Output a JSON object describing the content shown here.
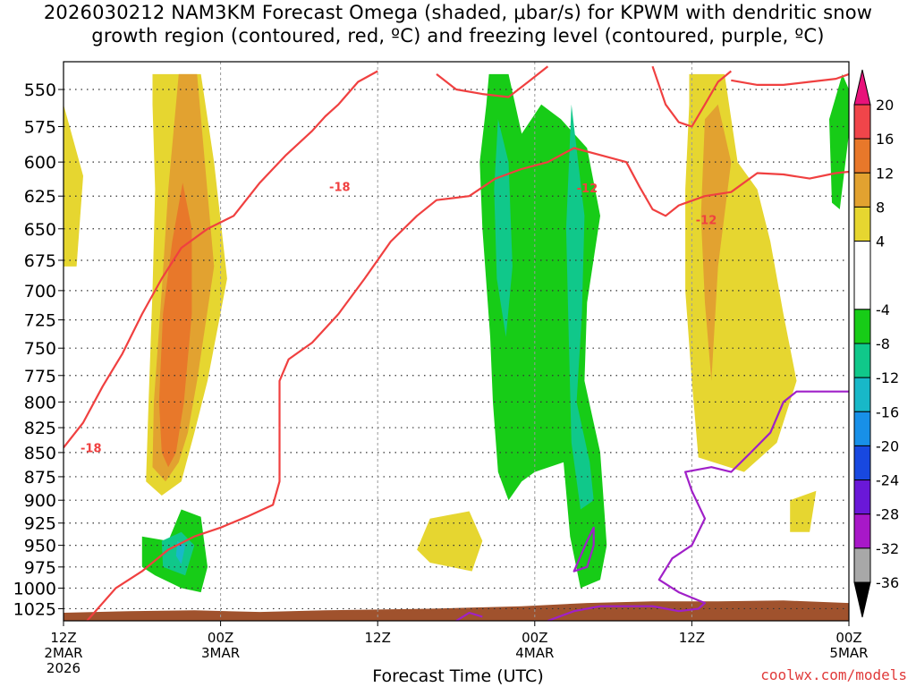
{
  "title": {
    "line1": "2026030212 NAM3KM Forecast Omega (shaded, μbar/s) for KPWM with dendritic snow",
    "line2": "growth region (contoured, red, ºC) and freezing level (contoured, purple, ºC)"
  },
  "credit": "coolwx.com/models",
  "chart_data": {
    "type": "heatmap",
    "title": "2026030212 NAM3KM Forecast Omega (shaded, μbar/s) for KPWM with dendritic snow growth region (contoured, red, ºC) and freezing level (contoured, purple, ºC)",
    "xlabel": "Forecast Time (UTC)",
    "ylabel": "",
    "x_ticks": [
      {
        "hour": 0,
        "lines": [
          "12Z",
          "2MAR",
          "2026"
        ]
      },
      {
        "hour": 12,
        "lines": [
          "00Z",
          "3MAR"
        ]
      },
      {
        "hour": 24,
        "lines": [
          "12Z"
        ]
      },
      {
        "hour": 36,
        "lines": [
          "00Z",
          "4MAR"
        ]
      },
      {
        "hour": 48,
        "lines": [
          "12Z"
        ]
      },
      {
        "hour": 60,
        "lines": [
          "00Z",
          "5MAR"
        ]
      }
    ],
    "xlim": [
      0,
      60
    ],
    "y_ticks": [
      550,
      575,
      600,
      625,
      650,
      675,
      700,
      725,
      750,
      775,
      800,
      825,
      850,
      875,
      900,
      925,
      950,
      975,
      1000,
      1025
    ],
    "ylim": [
      1040,
      532
    ],
    "y_scale": "log-pressure",
    "grid": true,
    "colorbar": {
      "ticks": [
        20,
        16,
        12,
        8,
        4,
        -4,
        -8,
        -12,
        -16,
        -20,
        -24,
        -28,
        -32,
        -36
      ],
      "bins": [
        {
          "from": 20,
          "to": 24,
          "color": "#e8127a"
        },
        {
          "from": 16,
          "to": 20,
          "color": "#f0454a"
        },
        {
          "from": 12,
          "to": 16,
          "color": "#e8782a"
        },
        {
          "from": 8,
          "to": 12,
          "color": "#e2a230"
        },
        {
          "from": 4,
          "to": 8,
          "color": "#e6d630"
        },
        {
          "from": -4,
          "to": 4,
          "color": "#ffffff"
        },
        {
          "from": -8,
          "to": -4,
          "color": "#17cc17"
        },
        {
          "from": -12,
          "to": -8,
          "color": "#10c88a"
        },
        {
          "from": -16,
          "to": -12,
          "color": "#18b8c8"
        },
        {
          "from": -20,
          "to": -16,
          "color": "#1890e8"
        },
        {
          "from": -24,
          "to": -20,
          "color": "#1848e0"
        },
        {
          "from": -28,
          "to": -24,
          "color": "#6a18d8"
        },
        {
          "from": -32,
          "to": -28,
          "color": "#a818c8"
        },
        {
          "from": -36,
          "to": -32,
          "color": "#a8a8a8"
        },
        {
          "from": -40,
          "to": -36,
          "color": "#000000"
        }
      ]
    },
    "omega_regions": [
      {
        "value": 6,
        "color": "#e6d630",
        "points": [
          [
            0,
            560
          ],
          [
            1.5,
            610
          ],
          [
            1,
            680
          ],
          [
            0,
            680
          ]
        ]
      },
      {
        "value": 6,
        "color": "#e6d630",
        "points": [
          [
            6.8,
            540
          ],
          [
            10.5,
            540
          ],
          [
            11.5,
            600
          ],
          [
            12.5,
            690
          ],
          [
            11,
            780
          ],
          [
            10,
            830
          ],
          [
            9,
            880
          ],
          [
            7.5,
            895
          ],
          [
            6.3,
            880
          ],
          [
            6.5,
            800
          ],
          [
            6.8,
            700
          ],
          [
            7,
            620
          ],
          [
            6.8,
            560
          ]
        ]
      },
      {
        "value": 10,
        "color": "#e2a230",
        "points": [
          [
            8.8,
            540
          ],
          [
            10.2,
            540
          ],
          [
            10.8,
            600
          ],
          [
            11.5,
            680
          ],
          [
            10.2,
            780
          ],
          [
            9.5,
            830
          ],
          [
            8.8,
            860
          ],
          [
            7.8,
            880
          ],
          [
            6.8,
            865
          ],
          [
            6.9,
            800
          ],
          [
            7.5,
            700
          ],
          [
            8,
            620
          ]
        ]
      },
      {
        "value": 14,
        "color": "#e8782a",
        "points": [
          [
            9.1,
            615
          ],
          [
            9.8,
            650
          ],
          [
            9.8,
            720
          ],
          [
            9.2,
            800
          ],
          [
            8.6,
            850
          ],
          [
            8,
            865
          ],
          [
            7.5,
            850
          ],
          [
            7.3,
            800
          ],
          [
            7.6,
            720
          ],
          [
            8.3,
            660
          ]
        ]
      },
      {
        "value": 6,
        "color": "#e6d630",
        "points": [
          [
            47.8,
            540
          ],
          [
            50.5,
            540
          ],
          [
            51.5,
            600
          ],
          [
            53,
            620
          ],
          [
            54,
            660
          ],
          [
            55,
            720
          ],
          [
            56,
            780
          ],
          [
            54.5,
            840
          ],
          [
            52,
            870
          ],
          [
            48.5,
            855
          ],
          [
            48,
            780
          ],
          [
            47.5,
            700
          ],
          [
            47.5,
            620
          ],
          [
            47.8,
            560
          ]
        ]
      },
      {
        "value": 10,
        "color": "#e2a230",
        "points": [
          [
            49,
            570
          ],
          [
            50,
            560
          ],
          [
            51,
            600
          ],
          [
            50,
            680
          ],
          [
            49.5,
            780
          ],
          [
            49,
            710
          ],
          [
            48.7,
            640
          ]
        ]
      },
      {
        "value": 6,
        "color": "#e6d630",
        "points": [
          [
            28,
            920
          ],
          [
            31,
            912
          ],
          [
            32,
            945
          ],
          [
            31.2,
            980
          ],
          [
            28,
            970
          ],
          [
            27,
            955
          ]
        ]
      },
      {
        "value": 6,
        "color": "#e6d630",
        "points": [
          [
            55.5,
            900
          ],
          [
            57.5,
            890
          ],
          [
            57,
            935
          ],
          [
            55.5,
            935
          ]
        ]
      },
      {
        "value": -6,
        "color": "#17cc17",
        "points": [
          [
            32.5,
            540
          ],
          [
            34,
            540
          ],
          [
            35,
            580
          ],
          [
            36.5,
            560
          ],
          [
            38,
            570
          ],
          [
            40,
            590
          ],
          [
            41,
            640
          ],
          [
            40,
            710
          ],
          [
            39.8,
            780
          ],
          [
            41,
            850
          ],
          [
            41.5,
            950
          ],
          [
            41,
            990
          ],
          [
            39.5,
            1000
          ],
          [
            38.7,
            940
          ],
          [
            38.2,
            860
          ],
          [
            36,
            870
          ],
          [
            35,
            880
          ],
          [
            34,
            900
          ],
          [
            33.2,
            870
          ],
          [
            32.8,
            800
          ],
          [
            32.6,
            740
          ],
          [
            32,
            650
          ],
          [
            31.8,
            600
          ],
          [
            32.3,
            560
          ]
        ]
      },
      {
        "value": -6,
        "color": "#17cc17",
        "points": [
          [
            6,
            940
          ],
          [
            8,
            945
          ],
          [
            9,
            910
          ],
          [
            10.5,
            918
          ],
          [
            11,
            975
          ],
          [
            10.5,
            1005
          ],
          [
            9,
            1000
          ],
          [
            7,
            985
          ],
          [
            6,
            975
          ]
        ]
      },
      {
        "value": -6,
        "color": "#17cc17",
        "points": [
          [
            59.5,
            540
          ],
          [
            60,
            550
          ],
          [
            60,
            580
          ],
          [
            59.3,
            635
          ],
          [
            58.7,
            630
          ],
          [
            58.5,
            570
          ]
        ]
      },
      {
        "value": -10,
        "color": "#10c88a",
        "points": [
          [
            33.2,
            570
          ],
          [
            34,
            600
          ],
          [
            34.3,
            680
          ],
          [
            33.8,
            740
          ],
          [
            33.1,
            690
          ],
          [
            32.9,
            620
          ]
        ]
      },
      {
        "value": -10,
        "color": "#10c88a",
        "points": [
          [
            38.8,
            560
          ],
          [
            39.8,
            640
          ],
          [
            39.6,
            720
          ],
          [
            39.2,
            800
          ],
          [
            40.2,
            860
          ],
          [
            40.5,
            900
          ],
          [
            39.5,
            910
          ],
          [
            38.8,
            840
          ],
          [
            38.6,
            740
          ],
          [
            38.4,
            650
          ]
        ]
      },
      {
        "value": -10,
        "color": "#10c88a",
        "points": [
          [
            7.5,
            945
          ],
          [
            9,
            935
          ],
          [
            10,
            950
          ],
          [
            9.3,
            985
          ],
          [
            7.6,
            975
          ]
        ]
      },
      {
        "value": -14,
        "color": "#18b8c8",
        "points": [
          [
            8.7,
            945
          ],
          [
            9.3,
            950
          ],
          [
            9,
            972
          ],
          [
            8.6,
            962
          ]
        ]
      }
    ],
    "contours": [
      {
        "name": "-18",
        "color": "#f04040",
        "points": [
          [
            0,
            845
          ],
          [
            1.5,
            820
          ],
          [
            3,
            785
          ],
          [
            4.5,
            755
          ],
          [
            6,
            720
          ],
          [
            7.5,
            690
          ],
          [
            9,
            665
          ],
          [
            11,
            650
          ],
          [
            13,
            640
          ],
          [
            15,
            615
          ],
          [
            17,
            595
          ],
          [
            19,
            578
          ],
          [
            20,
            568
          ],
          [
            21,
            560
          ],
          [
            22.5,
            545
          ],
          [
            24,
            538
          ]
        ]
      },
      {
        "name": "-12",
        "color": "#f04040",
        "points": [
          [
            1.8,
            1040
          ],
          [
            4,
            1000
          ],
          [
            6,
            980
          ],
          [
            8,
            955
          ],
          [
            10,
            940
          ],
          [
            12,
            930
          ],
          [
            14,
            918
          ],
          [
            16,
            905
          ],
          [
            16.5,
            880
          ],
          [
            16.5,
            830
          ],
          [
            16.5,
            780
          ],
          [
            17.2,
            760
          ],
          [
            19,
            745
          ],
          [
            21,
            720
          ],
          [
            23,
            690
          ],
          [
            25,
            660
          ],
          [
            27,
            640
          ],
          [
            28.5,
            628
          ],
          [
            31,
            625
          ],
          [
            33,
            612
          ],
          [
            35,
            605
          ],
          [
            37,
            600
          ],
          [
            39,
            590
          ],
          [
            41,
            595
          ],
          [
            43,
            600
          ],
          [
            44,
            618
          ],
          [
            45,
            635
          ],
          [
            46,
            640
          ],
          [
            47,
            632
          ],
          [
            49,
            625
          ],
          [
            51,
            622
          ],
          [
            53,
            608
          ],
          [
            55,
            609
          ],
          [
            57,
            612
          ],
          [
            59,
            608
          ],
          [
            60,
            607
          ]
        ]
      },
      {
        "name": "-12",
        "color": "#f04040",
        "points": [
          [
            28.5,
            540
          ],
          [
            30,
            550
          ],
          [
            32,
            553
          ],
          [
            34,
            555
          ],
          [
            35.5,
            545
          ],
          [
            37,
            535
          ]
        ]
      },
      {
        "name": "-12",
        "color": "#f04040",
        "points": [
          [
            45,
            535
          ],
          [
            46,
            560
          ],
          [
            47,
            572
          ],
          [
            48,
            575
          ],
          [
            49,
            560
          ],
          [
            50,
            545
          ],
          [
            51,
            538
          ]
        ]
      },
      {
        "name": "-12",
        "color": "#f04040",
        "points": [
          [
            51,
            544
          ],
          [
            53,
            547
          ],
          [
            55,
            547
          ],
          [
            57,
            545
          ],
          [
            59,
            543
          ],
          [
            60,
            540
          ]
        ]
      },
      {
        "name": "0",
        "color": "#a020c8",
        "points": [
          [
            30,
            1040
          ],
          [
            31,
            1030
          ],
          [
            32,
            1035
          ]
        ]
      },
      {
        "name": "0",
        "color": "#a020c8",
        "points": [
          [
            37,
            1040
          ],
          [
            39,
            1028
          ],
          [
            41,
            1022
          ],
          [
            43,
            1022
          ],
          [
            45,
            1022
          ],
          [
            47,
            1028
          ],
          [
            48.5,
            1025
          ],
          [
            49,
            1018
          ],
          [
            47,
            1005
          ],
          [
            45.5,
            990
          ],
          [
            46.5,
            965
          ],
          [
            48,
            950
          ],
          [
            49,
            920
          ],
          [
            48,
            890
          ],
          [
            47.5,
            870
          ],
          [
            49.5,
            865
          ],
          [
            51,
            870
          ],
          [
            52.5,
            850
          ],
          [
            54,
            830
          ],
          [
            55,
            800
          ],
          [
            56,
            790
          ],
          [
            57,
            790
          ],
          [
            58.5,
            790
          ],
          [
            60,
            790
          ]
        ]
      },
      {
        "name": "0",
        "color": "#a020c8",
        "points": [
          [
            40.5,
            950
          ],
          [
            40.5,
            930
          ],
          [
            40,
            945
          ],
          [
            39,
            980
          ],
          [
            40,
            975
          ],
          [
            40.5,
            950
          ]
        ]
      }
    ],
    "contour_labels": [
      {
        "text": "-18",
        "x": 1.3,
        "y": 845
      },
      {
        "text": "-18",
        "x": 20.3,
        "y": 618
      },
      {
        "text": "-12",
        "x": 39.2,
        "y": 619
      },
      {
        "text": "-12",
        "x": 48.3,
        "y": 643
      }
    ],
    "surface_terrain": [
      [
        0,
        1030
      ],
      [
        5,
        1028
      ],
      [
        10,
        1027
      ],
      [
        15,
        1029
      ],
      [
        20,
        1027
      ],
      [
        28,
        1025
      ],
      [
        35,
        1022
      ],
      [
        40,
        1018
      ],
      [
        45,
        1016
      ],
      [
        50,
        1016
      ],
      [
        55,
        1015
      ],
      [
        60,
        1018
      ]
    ]
  }
}
